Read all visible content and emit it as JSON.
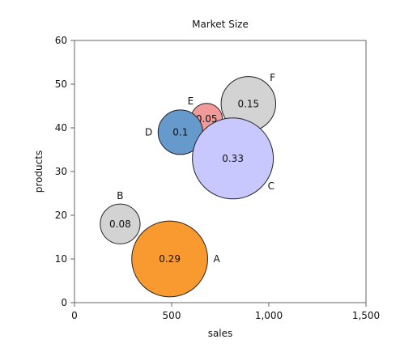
{
  "chart_data": {
    "type": "scatter",
    "subtype": "bubble",
    "title": "Market Size",
    "xlabel": "sales",
    "ylabel": "products",
    "xlim": [
      0,
      1500
    ],
    "ylim": [
      0,
      60
    ],
    "x_ticks": [
      0,
      500,
      1000,
      1500
    ],
    "x_tick_labels": [
      "0",
      "500",
      "1,000",
      "1,500"
    ],
    "y_ticks": [
      0,
      10,
      20,
      30,
      40,
      50,
      60
    ],
    "y_tick_labels": [
      "0",
      "10",
      "20",
      "30",
      "40",
      "50",
      "60"
    ],
    "grid": false,
    "legend": "none",
    "points": [
      {
        "name": "A",
        "x": 490,
        "y": 10,
        "size": 0.29,
        "label": "0.29",
        "color": "#f99a30",
        "name_pos": "right"
      },
      {
        "name": "B",
        "x": 235,
        "y": 18,
        "size": 0.08,
        "label": "0.08",
        "color": "#d3d3d3",
        "name_pos": "top"
      },
      {
        "name": "C",
        "x": 815,
        "y": 33,
        "size": 0.33,
        "label": "0.33",
        "color": "#c8c8ff",
        "name_pos": "bottom-right"
      },
      {
        "name": "D",
        "x": 545,
        "y": 39,
        "size": 0.1,
        "label": "0.1",
        "color": "#6699cc",
        "name_pos": "left"
      },
      {
        "name": "E",
        "x": 680,
        "y": 42,
        "size": 0.05,
        "label": "0.05",
        "color": "#f29a9a",
        "name_pos": "top-left"
      },
      {
        "name": "F",
        "x": 895,
        "y": 45.5,
        "size": 0.15,
        "label": "0.15",
        "color": "#d3d3d3",
        "name_pos": "top-right"
      }
    ]
  }
}
